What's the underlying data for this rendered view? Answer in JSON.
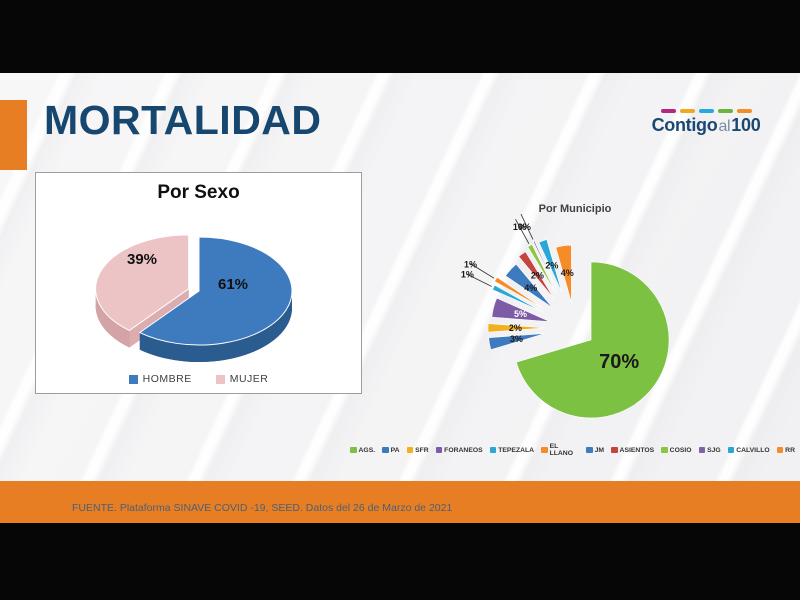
{
  "slide": {
    "title": "MORTALIDAD",
    "accent_color": "#e87e24",
    "title_color": "#17466e",
    "footer_source": "FUENTE. Plataforma SINAVE COVID -19, SEED. Datos del 26 de Marzo de 2021",
    "logo": {
      "word1": "Contigo",
      "word2": "al",
      "word3": "100",
      "dash_colors": [
        "#b5277d",
        "#f2a71c",
        "#29a8e0",
        "#6cb33f",
        "#f68c28"
      ]
    }
  },
  "chart_data": [
    {
      "type": "pie",
      "variant": "3d",
      "title": "Por Sexo",
      "data_labels": "percent",
      "legend_position": "bottom",
      "slices": [
        {
          "label": "HOMBRE",
          "value": 61,
          "color": "#3e7bbe",
          "side_color": "#2b5c8f",
          "bottom_color": "#27527f"
        },
        {
          "label": "MUJER",
          "value": 39,
          "color": "#edc4c6",
          "side_color": "#d3a3a7",
          "bottom_color": "#c69599",
          "exploded": true
        }
      ]
    },
    {
      "type": "pie",
      "variant": "exploded",
      "title": "Por Municipio",
      "data_labels": "percent",
      "legend_position": "bottom",
      "slices": [
        {
          "label": "AGS.",
          "value": 70,
          "color": "#7cc142"
        },
        {
          "label": "PA",
          "value": 3,
          "color": "#3e7bbe"
        },
        {
          "label": "SFR",
          "value": 2,
          "color": "#f2b01e"
        },
        {
          "label": "FORANEOS",
          "value": 5,
          "color": "#7d5ba6"
        },
        {
          "label": "TEPEZALA",
          "value": 1,
          "color": "#29a8d8"
        },
        {
          "label": "EL LLANO",
          "value": 1,
          "color": "#f68c28"
        },
        {
          "label": "JM",
          "value": 4,
          "color": "#3e7bbe"
        },
        {
          "label": "ASIENTOS",
          "value": 2,
          "color": "#c4443e"
        },
        {
          "label": "COSIO",
          "value": 1,
          "color": "#8cc63f"
        },
        {
          "label": "SJG",
          "value": 0,
          "color": "#8064a2"
        },
        {
          "label": "CALVILLO",
          "value": 2,
          "color": "#29a8d8"
        },
        {
          "label": "RR",
          "value": 4,
          "color": "#f68c28"
        }
      ]
    }
  ]
}
